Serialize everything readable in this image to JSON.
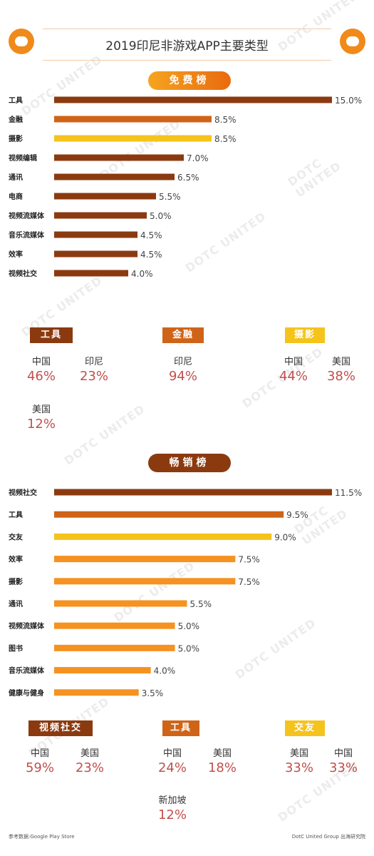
{
  "title": "2019印尼非游戏APP主要类型",
  "colors": {
    "dark": "#8b3a10",
    "mid": "#cf6418",
    "yellow": "#f5c31c",
    "orange": "#f59221"
  },
  "chart_data": [
    {
      "type": "bar",
      "title": "免费榜",
      "categories": [
        "工具",
        "金融",
        "摄影",
        "视频编辑",
        "通讯",
        "电商",
        "视频流媒体",
        "音乐流媒体",
        "效率",
        "视频社交"
      ],
      "values": [
        15.0,
        8.5,
        8.5,
        7.0,
        6.5,
        5.5,
        5.0,
        4.5,
        4.5,
        4.0
      ],
      "labels": [
        "15.0%",
        "8.5%",
        "8.5%",
        "7.0%",
        "6.5%",
        "5.5%",
        "5.0%",
        "4.5%",
        "4.5%",
        "4.0%"
      ],
      "bar_colors": [
        "dark",
        "mid",
        "yellow",
        "dark",
        "dark",
        "dark",
        "dark",
        "dark",
        "dark",
        "dark"
      ],
      "xlim": [
        0,
        15
      ]
    },
    {
      "type": "bar",
      "title": "畅销榜",
      "categories": [
        "视频社交",
        "工具",
        "交友",
        "效率",
        "摄影",
        "通讯",
        "视频流媒体",
        "图书",
        "音乐流媒体",
        "健康与健身"
      ],
      "values": [
        11.5,
        9.5,
        9.0,
        7.5,
        7.5,
        5.5,
        5.0,
        5.0,
        4.0,
        3.5
      ],
      "labels": [
        "11.5%",
        "9.5%",
        "9.0%",
        "7.5%",
        "7.5%",
        "5.5%",
        "5.0%",
        "5.0%",
        "4.0%",
        "3.5%"
      ],
      "bar_colors": [
        "dark",
        "mid",
        "yellow",
        "orange",
        "orange",
        "orange",
        "orange",
        "orange",
        "orange",
        "orange"
      ],
      "xlim": [
        0,
        11.5
      ]
    }
  ],
  "free_breakdown": {
    "tags": [
      "工具",
      "金融",
      "摄影"
    ],
    "stats": [
      {
        "label": "中国",
        "value": "46%"
      },
      {
        "label": "印尼",
        "value": "23%"
      },
      {
        "label": "印尼",
        "value": "94%"
      },
      {
        "label": "中国",
        "value": "44%"
      },
      {
        "label": "美国",
        "value": "38%"
      },
      {
        "label": "美国",
        "value": "12%"
      }
    ]
  },
  "sell_breakdown": {
    "tags": [
      "视频社交",
      "工具",
      "交友"
    ],
    "stats": [
      {
        "label": "中国",
        "value": "59%"
      },
      {
        "label": "美国",
        "value": "23%"
      },
      {
        "label": "中国",
        "value": "24%"
      },
      {
        "label": "美国",
        "value": "18%"
      },
      {
        "label": "美国",
        "value": "33%"
      },
      {
        "label": "中国",
        "value": "33%"
      },
      {
        "label": "新加坡",
        "value": "12%"
      }
    ]
  },
  "footer": {
    "source": "参考数据:Google Play Store",
    "credit": "DotC United Group 出海研究院"
  }
}
